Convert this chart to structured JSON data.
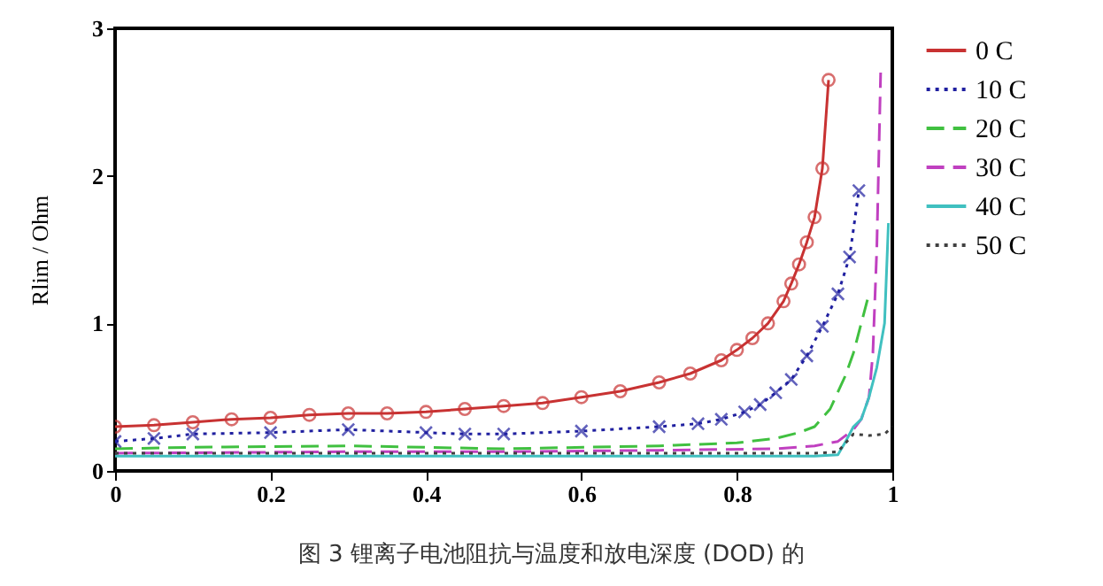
{
  "chart_data": {
    "type": "line",
    "ylabel": "Rlim / Ohm",
    "annotations": [
      "图 3 锂离子电池阻抗与温度和放电深度 (DOD) 的"
    ],
    "xlim": [
      0,
      1
    ],
    "xticks": [
      0,
      0.2,
      0.4,
      0.6,
      0.8,
      1
    ],
    "ylim": [
      0,
      3
    ],
    "yticks": [
      0,
      1,
      2,
      3
    ],
    "grid": false,
    "legend": "right",
    "series": [
      {
        "name": "0 C",
        "color": "#c83232",
        "marker": "circle",
        "line_style": "solid",
        "x": [
          0,
          0.05,
          0.1,
          0.15,
          0.2,
          0.25,
          0.3,
          0.35,
          0.4,
          0.45,
          0.5,
          0.55,
          0.6,
          0.65,
          0.7,
          0.74,
          0.78,
          0.8,
          0.82,
          0.84,
          0.86,
          0.87,
          0.88,
          0.89,
          0.9,
          0.91,
          0.918
        ],
        "values": [
          0.3,
          0.31,
          0.33,
          0.35,
          0.36,
          0.38,
          0.39,
          0.39,
          0.4,
          0.42,
          0.44,
          0.46,
          0.5,
          0.54,
          0.6,
          0.66,
          0.75,
          0.82,
          0.9,
          1.0,
          1.15,
          1.27,
          1.4,
          1.55,
          1.72,
          2.05,
          2.65
        ]
      },
      {
        "name": "10 C",
        "color": "#2020a0",
        "marker": "cross",
        "line_style": "dotted",
        "x": [
          0,
          0.05,
          0.1,
          0.2,
          0.3,
          0.4,
          0.45,
          0.5,
          0.6,
          0.7,
          0.75,
          0.78,
          0.81,
          0.83,
          0.85,
          0.87,
          0.89,
          0.91,
          0.93,
          0.945,
          0.957
        ],
        "values": [
          0.2,
          0.22,
          0.25,
          0.26,
          0.28,
          0.26,
          0.25,
          0.25,
          0.27,
          0.3,
          0.32,
          0.35,
          0.4,
          0.45,
          0.53,
          0.62,
          0.78,
          0.98,
          1.2,
          1.45,
          1.9
        ]
      },
      {
        "name": "20 C",
        "color": "#40c040",
        "marker": "none",
        "line_style": "dashed",
        "x": [
          0,
          0.1,
          0.3,
          0.5,
          0.7,
          0.8,
          0.85,
          0.88,
          0.9,
          0.92,
          0.94,
          0.95,
          0.96,
          0.97
        ],
        "values": [
          0.15,
          0.16,
          0.17,
          0.15,
          0.17,
          0.19,
          0.22,
          0.26,
          0.3,
          0.42,
          0.65,
          0.8,
          1.0,
          1.2
        ]
      },
      {
        "name": "30 C",
        "color": "#c040c0",
        "marker": "none",
        "line_style": "dashed",
        "x": [
          0,
          0.3,
          0.5,
          0.7,
          0.85,
          0.9,
          0.93,
          0.95,
          0.96,
          0.97,
          0.975,
          0.98,
          0.985
        ],
        "values": [
          0.12,
          0.13,
          0.13,
          0.14,
          0.15,
          0.17,
          0.2,
          0.28,
          0.35,
          0.5,
          0.8,
          1.5,
          2.7
        ]
      },
      {
        "name": "40 C",
        "color": "#40c0c0",
        "marker": "none",
        "line_style": "solid",
        "x": [
          0,
          0.3,
          0.6,
          0.9,
          0.93,
          0.94,
          0.95,
          0.96,
          0.97,
          0.98,
          0.99,
          0.995
        ],
        "values": [
          0.1,
          0.1,
          0.1,
          0.1,
          0.11,
          0.2,
          0.3,
          0.35,
          0.5,
          0.7,
          1.0,
          1.68
        ]
      },
      {
        "name": "50 C",
        "color": "#404040",
        "marker": "none",
        "line_style": "dotted",
        "x": [
          0,
          0.3,
          0.6,
          0.9,
          0.93,
          0.95,
          0.97,
          0.99,
          1.0
        ],
        "values": [
          0.12,
          0.12,
          0.12,
          0.12,
          0.13,
          0.25,
          0.24,
          0.25,
          0.3
        ]
      }
    ]
  }
}
